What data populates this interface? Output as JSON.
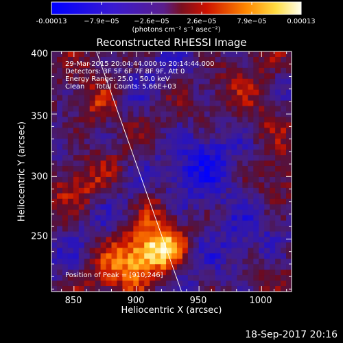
{
  "colorbar": {
    "ticks": [
      "-0.00013",
      "−7.9e−05",
      "−2.6e−05",
      "2.6e−05",
      "7.9e−05",
      "0.00013"
    ],
    "unit_label": "(photons cm⁻² s⁻¹ asec⁻²)"
  },
  "plot": {
    "title": "Reconstructed RHESSI Image",
    "info": {
      "time_line": "29-Mar-2015 20:04:44.000 to 20:14:44.000",
      "detectors_line": "Detectors: 3F 5F 6F 7F 8F 9F, Att 0",
      "energy_line": "Energy Range: 25.0 - 50.0 keV",
      "clean_line": "Clean     Total Counts: 5.66E+03"
    },
    "peak_label": "Position of Peak = [910,246]"
  },
  "chart_data": {
    "type": "heatmap",
    "title": "Reconstructed RHESSI Image",
    "xlabel": "Heliocentric X (arcsec)",
    "ylabel": "Heliocentric Y (arcsec)",
    "xlim": [
      832,
      1024
    ],
    "ylim": [
      208,
      400
    ],
    "x_ticks": [
      850,
      900,
      950,
      1000
    ],
    "y_ticks": [
      250,
      300,
      350,
      400
    ],
    "x_tick_labels": [
      "850",
      "900",
      "950",
      "1000"
    ],
    "y_tick_labels": [
      "250",
      "300",
      "350",
      "400"
    ],
    "colorbar_range": [
      -0.00013,
      0.00013
    ],
    "peak": [
      910,
      246
    ],
    "limb_line": [
      [
        868,
        400
      ],
      [
        936,
        208
      ]
    ],
    "colors": {
      "low": "#0000ff",
      "mid": "#5a1e8c",
      "high_red": "#cc1100",
      "high_orange": "#ff8800",
      "top": "#ffffee"
    }
  },
  "footer": {
    "timestamp": "18-Sep-2017 20:16"
  }
}
